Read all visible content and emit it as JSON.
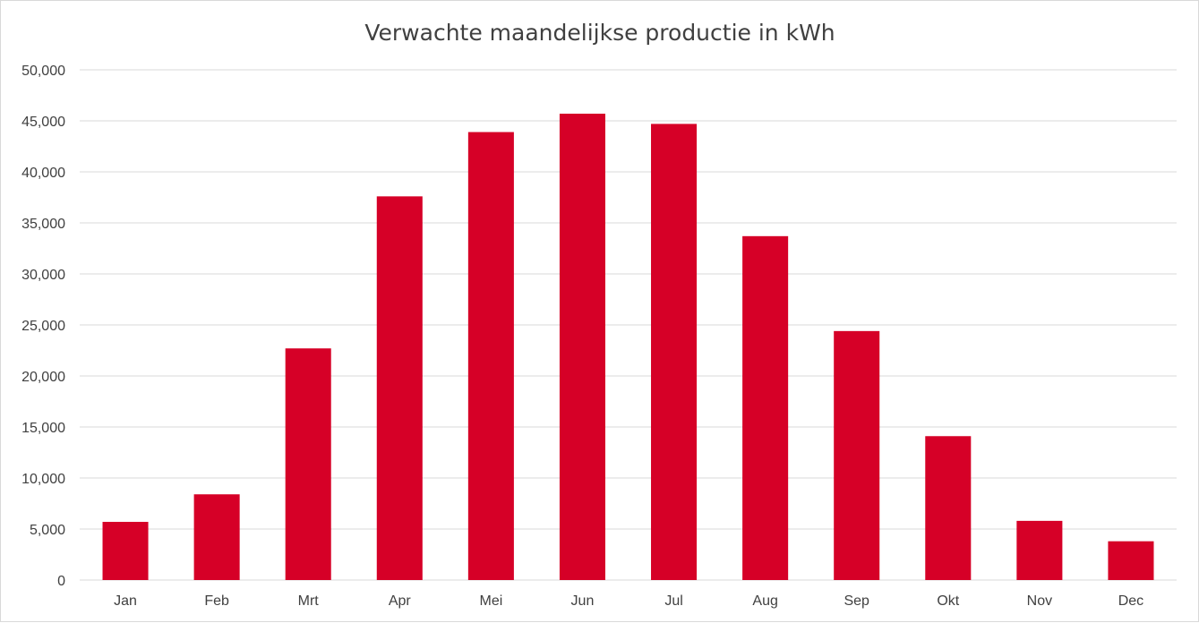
{
  "chart_data": {
    "type": "bar",
    "title": "Verwachte maandelijkse productie in kWh",
    "xlabel": "",
    "ylabel": "",
    "categories": [
      "Jan",
      "Feb",
      "Mrt",
      "Apr",
      "Mei",
      "Jun",
      "Jul",
      "Aug",
      "Sep",
      "Okt",
      "Nov",
      "Dec"
    ],
    "series": [
      {
        "values": [
          5700,
          8400,
          22700,
          37600,
          43900,
          45700,
          44700,
          33700,
          24400,
          14100,
          5800,
          3800
        ]
      }
    ],
    "ylim": [
      0,
      50000
    ],
    "yticks": [
      0,
      5000,
      10000,
      15000,
      20000,
      25000,
      30000,
      35000,
      40000,
      45000,
      50000
    ],
    "ytick_labels": [
      "0",
      "5,000",
      "10,000",
      "15,000",
      "20,000",
      "25,000",
      "30,000",
      "35,000",
      "40,000",
      "45,000",
      "50,000"
    ],
    "grid": true,
    "legend": "none",
    "bar_color": "#d60027",
    "grid_color": "#d9d9d9",
    "text_color": "#404040"
  }
}
